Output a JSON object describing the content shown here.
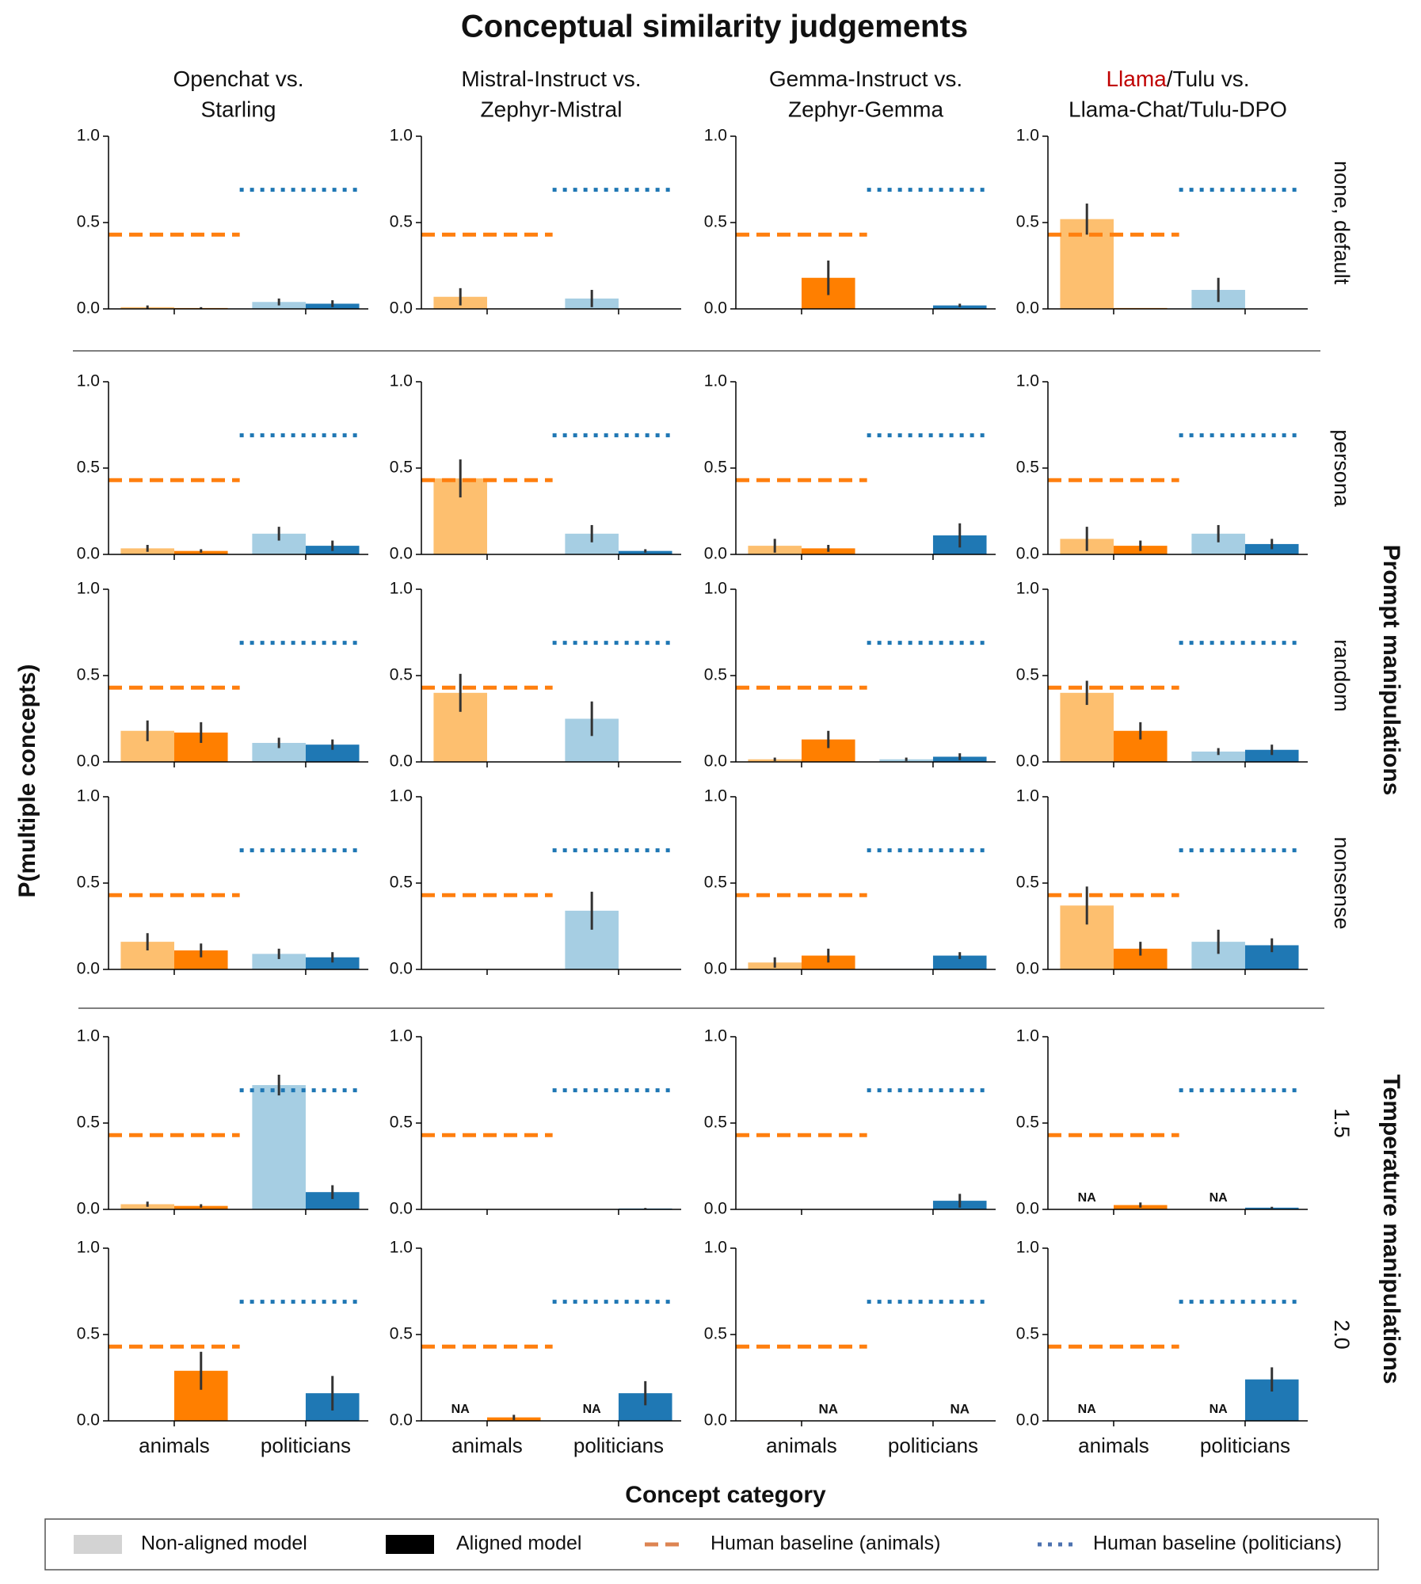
{
  "title": "Conceptual similarity judgements",
  "y_label": "P(multiple concepts)",
  "x_label": "Concept category",
  "columns": [
    {
      "line1": "Openchat vs.",
      "line2": "Starling"
    },
    {
      "line1": "Mistral-Instruct vs.",
      "line2": "Zephyr-Mistral"
    },
    {
      "line1": "Gemma-Instruct vs.",
      "line2": "Zephyr-Gemma"
    },
    {
      "highlight": "Llama",
      "highlight_color": "#c00000",
      "line1": "/Tulu vs.",
      "line2": "Llama-Chat/Tulu-DPO"
    }
  ],
  "rows": [
    "none, default",
    "persona",
    "random",
    "nonsense",
    "1.5",
    "2.0"
  ],
  "groups": [
    "Prompt manipulations",
    "Temperature manipulations"
  ],
  "panel_axes": {
    "categories": [
      "animals",
      "politicians"
    ],
    "ylim": [
      0,
      1
    ],
    "yticks": [
      {
        "value": 0,
        "label": "0.0"
      },
      0.5,
      {
        "value": 1,
        "label": "1.0"
      }
    ],
    "bar_colors": [
      [
        "#fdbf6f",
        "#ff7f00"
      ],
      [
        "#a6cee3",
        "#1f78b4"
      ]
    ],
    "na_colors": [
      "#c8c8c8",
      "#000000"
    ],
    "baselines": [
      {
        "value": 0.43,
        "color": "#ff7f0e",
        "style": "dashed"
      },
      {
        "value": 0.69,
        "color": "#1f77b4",
        "style": "dotted"
      }
    ]
  },
  "legend": [
    {
      "name": "Non-aligned model",
      "color": "#d3d3d3",
      "kind": "patch"
    },
    {
      "name": "Aligned model",
      "color": "#000000",
      "kind": "patch"
    },
    {
      "name": "Human baseline (animals)",
      "color": "#dd8452",
      "kind": "dashed"
    },
    {
      "name": "Human baseline (politicians)",
      "color": "#4c72b0",
      "kind": "dotted"
    }
  ],
  "chart_data": [
    {
      "type": "bar",
      "series": [
        {
          "values": [
            0.01,
            0.04
          ],
          "errors": [
            0.01,
            0.02
          ]
        },
        {
          "values": [
            0.005,
            0.03
          ],
          "errors": [
            0.005,
            0.02
          ]
        }
      ]
    },
    {
      "type": "bar",
      "series": [
        {
          "values": [
            0.07,
            0.06
          ],
          "errors": [
            0.05,
            0.05
          ]
        },
        {
          "values": [
            0,
            0
          ],
          "errors": [
            null,
            null
          ]
        }
      ]
    },
    {
      "type": "bar",
      "series": [
        {
          "values": [
            0,
            0
          ],
          "errors": [
            null,
            null
          ]
        },
        {
          "values": [
            0.18,
            0.02
          ],
          "errors": [
            0.1,
            0.01
          ]
        }
      ]
    },
    {
      "type": "bar",
      "series": [
        {
          "values": [
            0.52,
            0.11
          ],
          "errors": [
            0.09,
            0.07
          ]
        },
        {
          "values": [
            0.005,
            0
          ],
          "errors": [
            null,
            null
          ]
        }
      ]
    },
    {
      "type": "bar",
      "series": [
        {
          "values": [
            0.035,
            0.12
          ],
          "errors": [
            0.02,
            0.04
          ]
        },
        {
          "values": [
            0.02,
            0.05
          ],
          "errors": [
            0.01,
            0.03
          ]
        }
      ]
    },
    {
      "type": "bar",
      "series": [
        {
          "values": [
            0.44,
            0.12
          ],
          "errors": [
            0.11,
            0.05
          ]
        },
        {
          "values": [
            0,
            0.02
          ],
          "errors": [
            null,
            0.01
          ]
        }
      ]
    },
    {
      "type": "bar",
      "series": [
        {
          "values": [
            0.05,
            0
          ],
          "errors": [
            0.04,
            null
          ]
        },
        {
          "values": [
            0.035,
            0.11
          ],
          "errors": [
            0.02,
            0.07
          ]
        }
      ]
    },
    {
      "type": "bar",
      "series": [
        {
          "values": [
            0.09,
            0.12
          ],
          "errors": [
            0.07,
            0.05
          ]
        },
        {
          "values": [
            0.05,
            0.06
          ],
          "errors": [
            0.03,
            0.03
          ]
        }
      ]
    },
    {
      "type": "bar",
      "series": [
        {
          "values": [
            0.18,
            0.11
          ],
          "errors": [
            0.06,
            0.03
          ]
        },
        {
          "values": [
            0.17,
            0.1
          ],
          "errors": [
            0.06,
            0.03
          ]
        }
      ]
    },
    {
      "type": "bar",
      "series": [
        {
          "values": [
            0.4,
            0.25
          ],
          "errors": [
            0.11,
            0.1
          ]
        },
        {
          "values": [
            0,
            0
          ],
          "errors": [
            null,
            null
          ]
        }
      ]
    },
    {
      "type": "bar",
      "series": [
        {
          "values": [
            0.015,
            0.015
          ],
          "errors": [
            0.01,
            0.01
          ]
        },
        {
          "values": [
            0.13,
            0.03
          ],
          "errors": [
            0.05,
            0.02
          ]
        }
      ]
    },
    {
      "type": "bar",
      "series": [
        {
          "values": [
            0.4,
            0.06
          ],
          "errors": [
            0.07,
            0.02
          ]
        },
        {
          "values": [
            0.18,
            0.07
          ],
          "errors": [
            0.05,
            0.03
          ]
        }
      ]
    },
    {
      "type": "bar",
      "series": [
        {
          "values": [
            0.16,
            0.09
          ],
          "errors": [
            0.05,
            0.03
          ]
        },
        {
          "values": [
            0.11,
            0.07
          ],
          "errors": [
            0.04,
            0.03
          ]
        }
      ]
    },
    {
      "type": "bar",
      "series": [
        {
          "values": [
            0,
            0.34
          ],
          "errors": [
            null,
            0.11
          ]
        },
        {
          "values": [
            0,
            0
          ],
          "errors": [
            null,
            null
          ]
        }
      ]
    },
    {
      "type": "bar",
      "series": [
        {
          "values": [
            0.04,
            0.003
          ],
          "errors": [
            0.03,
            null
          ]
        },
        {
          "values": [
            0.08,
            0.08
          ],
          "errors": [
            0.04,
            0.02
          ]
        }
      ]
    },
    {
      "type": "bar",
      "series": [
        {
          "values": [
            0.37,
            0.16
          ],
          "errors": [
            0.11,
            0.07
          ]
        },
        {
          "values": [
            0.12,
            0.14
          ],
          "errors": [
            0.04,
            0.04
          ]
        }
      ]
    },
    {
      "type": "bar",
      "series": [
        {
          "values": [
            0.03,
            0.72
          ],
          "errors": [
            0.015,
            0.06
          ]
        },
        {
          "values": [
            0.02,
            0.1
          ],
          "errors": [
            0.01,
            0.04
          ]
        }
      ]
    },
    {
      "type": "bar",
      "series": [
        {
          "values": [
            0,
            0
          ],
          "errors": [
            null,
            null
          ]
        },
        {
          "values": [
            0,
            0.005
          ],
          "errors": [
            null,
            0.003
          ]
        }
      ]
    },
    {
      "type": "bar",
      "series": [
        {
          "values": [
            0,
            0
          ],
          "errors": [
            null,
            null
          ]
        },
        {
          "values": [
            0,
            0.05
          ],
          "errors": [
            null,
            0.04
          ]
        }
      ]
    },
    {
      "type": "bar",
      "series": [
        {
          "values": [
            null,
            null
          ],
          "value_labels": [
            "NA",
            "NA"
          ],
          "errors": [
            null,
            null
          ]
        },
        {
          "values": [
            0.025,
            0.01
          ],
          "errors": [
            0.015,
            0.005
          ]
        }
      ]
    },
    {
      "type": "bar",
      "series": [
        {
          "values": [
            0,
            0
          ],
          "errors": [
            null,
            null
          ]
        },
        {
          "values": [
            0.29,
            0.16
          ],
          "errors": [
            0.11,
            0.1
          ]
        }
      ]
    },
    {
      "type": "bar",
      "series": [
        {
          "values": [
            null,
            null
          ],
          "value_labels": [
            "NA",
            "NA"
          ],
          "errors": [
            null,
            null
          ]
        },
        {
          "values": [
            0.02,
            0.16
          ],
          "errors": [
            0.015,
            0.07
          ]
        }
      ]
    },
    {
      "type": "bar",
      "series": [
        {
          "values": [
            0.003,
            0
          ],
          "errors": [
            null,
            null
          ]
        },
        {
          "values": [
            null,
            null
          ],
          "value_labels": [
            "NA",
            "NA"
          ],
          "errors": [
            null,
            null
          ]
        }
      ]
    },
    {
      "type": "bar",
      "series": [
        {
          "values": [
            null,
            null
          ],
          "value_labels": [
            "NA",
            "NA"
          ],
          "errors": [
            null,
            null
          ]
        },
        {
          "values": [
            0,
            0.24
          ],
          "errors": [
            null,
            0.07
          ]
        }
      ]
    }
  ]
}
